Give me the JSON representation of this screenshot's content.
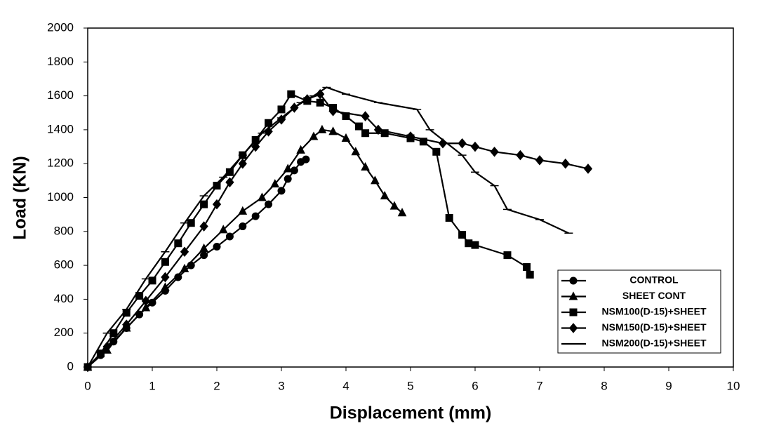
{
  "chart_data": {
    "type": "line",
    "x_label": "Displacement (mm)",
    "y_label": "Load (KN)",
    "xlim": [
      0,
      10
    ],
    "xticks": [
      0,
      1,
      2,
      3,
      4,
      5,
      6,
      7,
      8,
      9,
      10
    ],
    "ylim": [
      0,
      2000
    ],
    "yticks": [
      0,
      200,
      400,
      600,
      800,
      1000,
      1200,
      1400,
      1600,
      1800,
      2000
    ],
    "legend": "lower right",
    "series": [
      {
        "name": "CONTROL",
        "color": "#000000",
        "marker": "circle",
        "x": [
          0,
          0.2,
          0.4,
          0.6,
          0.8,
          1.0,
          1.2,
          1.4,
          1.6,
          1.8,
          2.0,
          2.2,
          2.4,
          2.6,
          2.8,
          3.0,
          3.1,
          3.2,
          3.3,
          3.38
        ],
        "values": [
          0,
          70,
          150,
          230,
          310,
          380,
          450,
          530,
          600,
          660,
          710,
          770,
          830,
          890,
          960,
          1040,
          1110,
          1160,
          1210,
          1225
        ]
      },
      {
        "name": "SHEET CONT",
        "color": "#000000",
        "marker": "triangle",
        "x": [
          0,
          0.3,
          0.6,
          0.9,
          1.2,
          1.5,
          1.8,
          2.1,
          2.4,
          2.7,
          2.9,
          3.1,
          3.3,
          3.5,
          3.63,
          3.8,
          4.0,
          4.15,
          4.3,
          4.45,
          4.6,
          4.75,
          4.87
        ],
        "values": [
          0,
          100,
          230,
          350,
          470,
          580,
          700,
          810,
          920,
          1000,
          1080,
          1170,
          1280,
          1360,
          1400,
          1390,
          1350,
          1270,
          1180,
          1100,
          1010,
          950,
          910
        ]
      },
      {
        "name": "NSM100(D-15)+SHEET",
        "color": "#000000",
        "marker": "square",
        "x": [
          0,
          0.2,
          0.4,
          0.6,
          0.8,
          1.0,
          1.2,
          1.4,
          1.6,
          1.8,
          2.0,
          2.2,
          2.4,
          2.6,
          2.8,
          3.0,
          3.15,
          3.4,
          3.6,
          3.8,
          4.0,
          4.2,
          4.3,
          4.6,
          5.0,
          5.2,
          5.4,
          5.6,
          5.8,
          5.9,
          6.0,
          6.5,
          6.8,
          6.85
        ],
        "values": [
          0,
          80,
          200,
          320,
          420,
          510,
          620,
          730,
          850,
          960,
          1070,
          1150,
          1250,
          1340,
          1440,
          1520,
          1610,
          1570,
          1560,
          1530,
          1480,
          1420,
          1380,
          1380,
          1350,
          1330,
          1270,
          880,
          780,
          730,
          720,
          660,
          590,
          545
        ]
      },
      {
        "name": "NSM150(D-15)+SHEET",
        "color": "#000000",
        "marker": "diamond",
        "x": [
          0,
          0.3,
          0.6,
          0.9,
          1.2,
          1.5,
          1.8,
          2.0,
          2.2,
          2.4,
          2.6,
          2.8,
          3.0,
          3.2,
          3.4,
          3.6,
          3.8,
          4.3,
          4.5,
          5.0,
          5.5,
          5.8,
          6.0,
          6.3,
          6.7,
          7.0,
          7.4,
          7.75
        ],
        "values": [
          0,
          120,
          250,
          390,
          530,
          680,
          830,
          960,
          1090,
          1200,
          1300,
          1390,
          1460,
          1530,
          1580,
          1610,
          1510,
          1480,
          1400,
          1360,
          1320,
          1320,
          1300,
          1270,
          1250,
          1220,
          1200,
          1170
        ]
      },
      {
        "name": "NSM200(D-15)+SHEET",
        "color": "#000000",
        "marker": "dash",
        "x": [
          0,
          0.3,
          0.6,
          0.9,
          1.2,
          1.5,
          1.8,
          2.1,
          2.4,
          2.7,
          3.0,
          3.3,
          3.5,
          3.7,
          4.0,
          4.5,
          5.1,
          5.3,
          5.8,
          6.0,
          6.3,
          6.5,
          7.0,
          7.45
        ],
        "values": [
          0,
          200,
          340,
          520,
          680,
          850,
          1010,
          1120,
          1250,
          1380,
          1470,
          1560,
          1600,
          1650,
          1610,
          1560,
          1520,
          1400,
          1250,
          1150,
          1070,
          930,
          870,
          790
        ]
      }
    ]
  }
}
